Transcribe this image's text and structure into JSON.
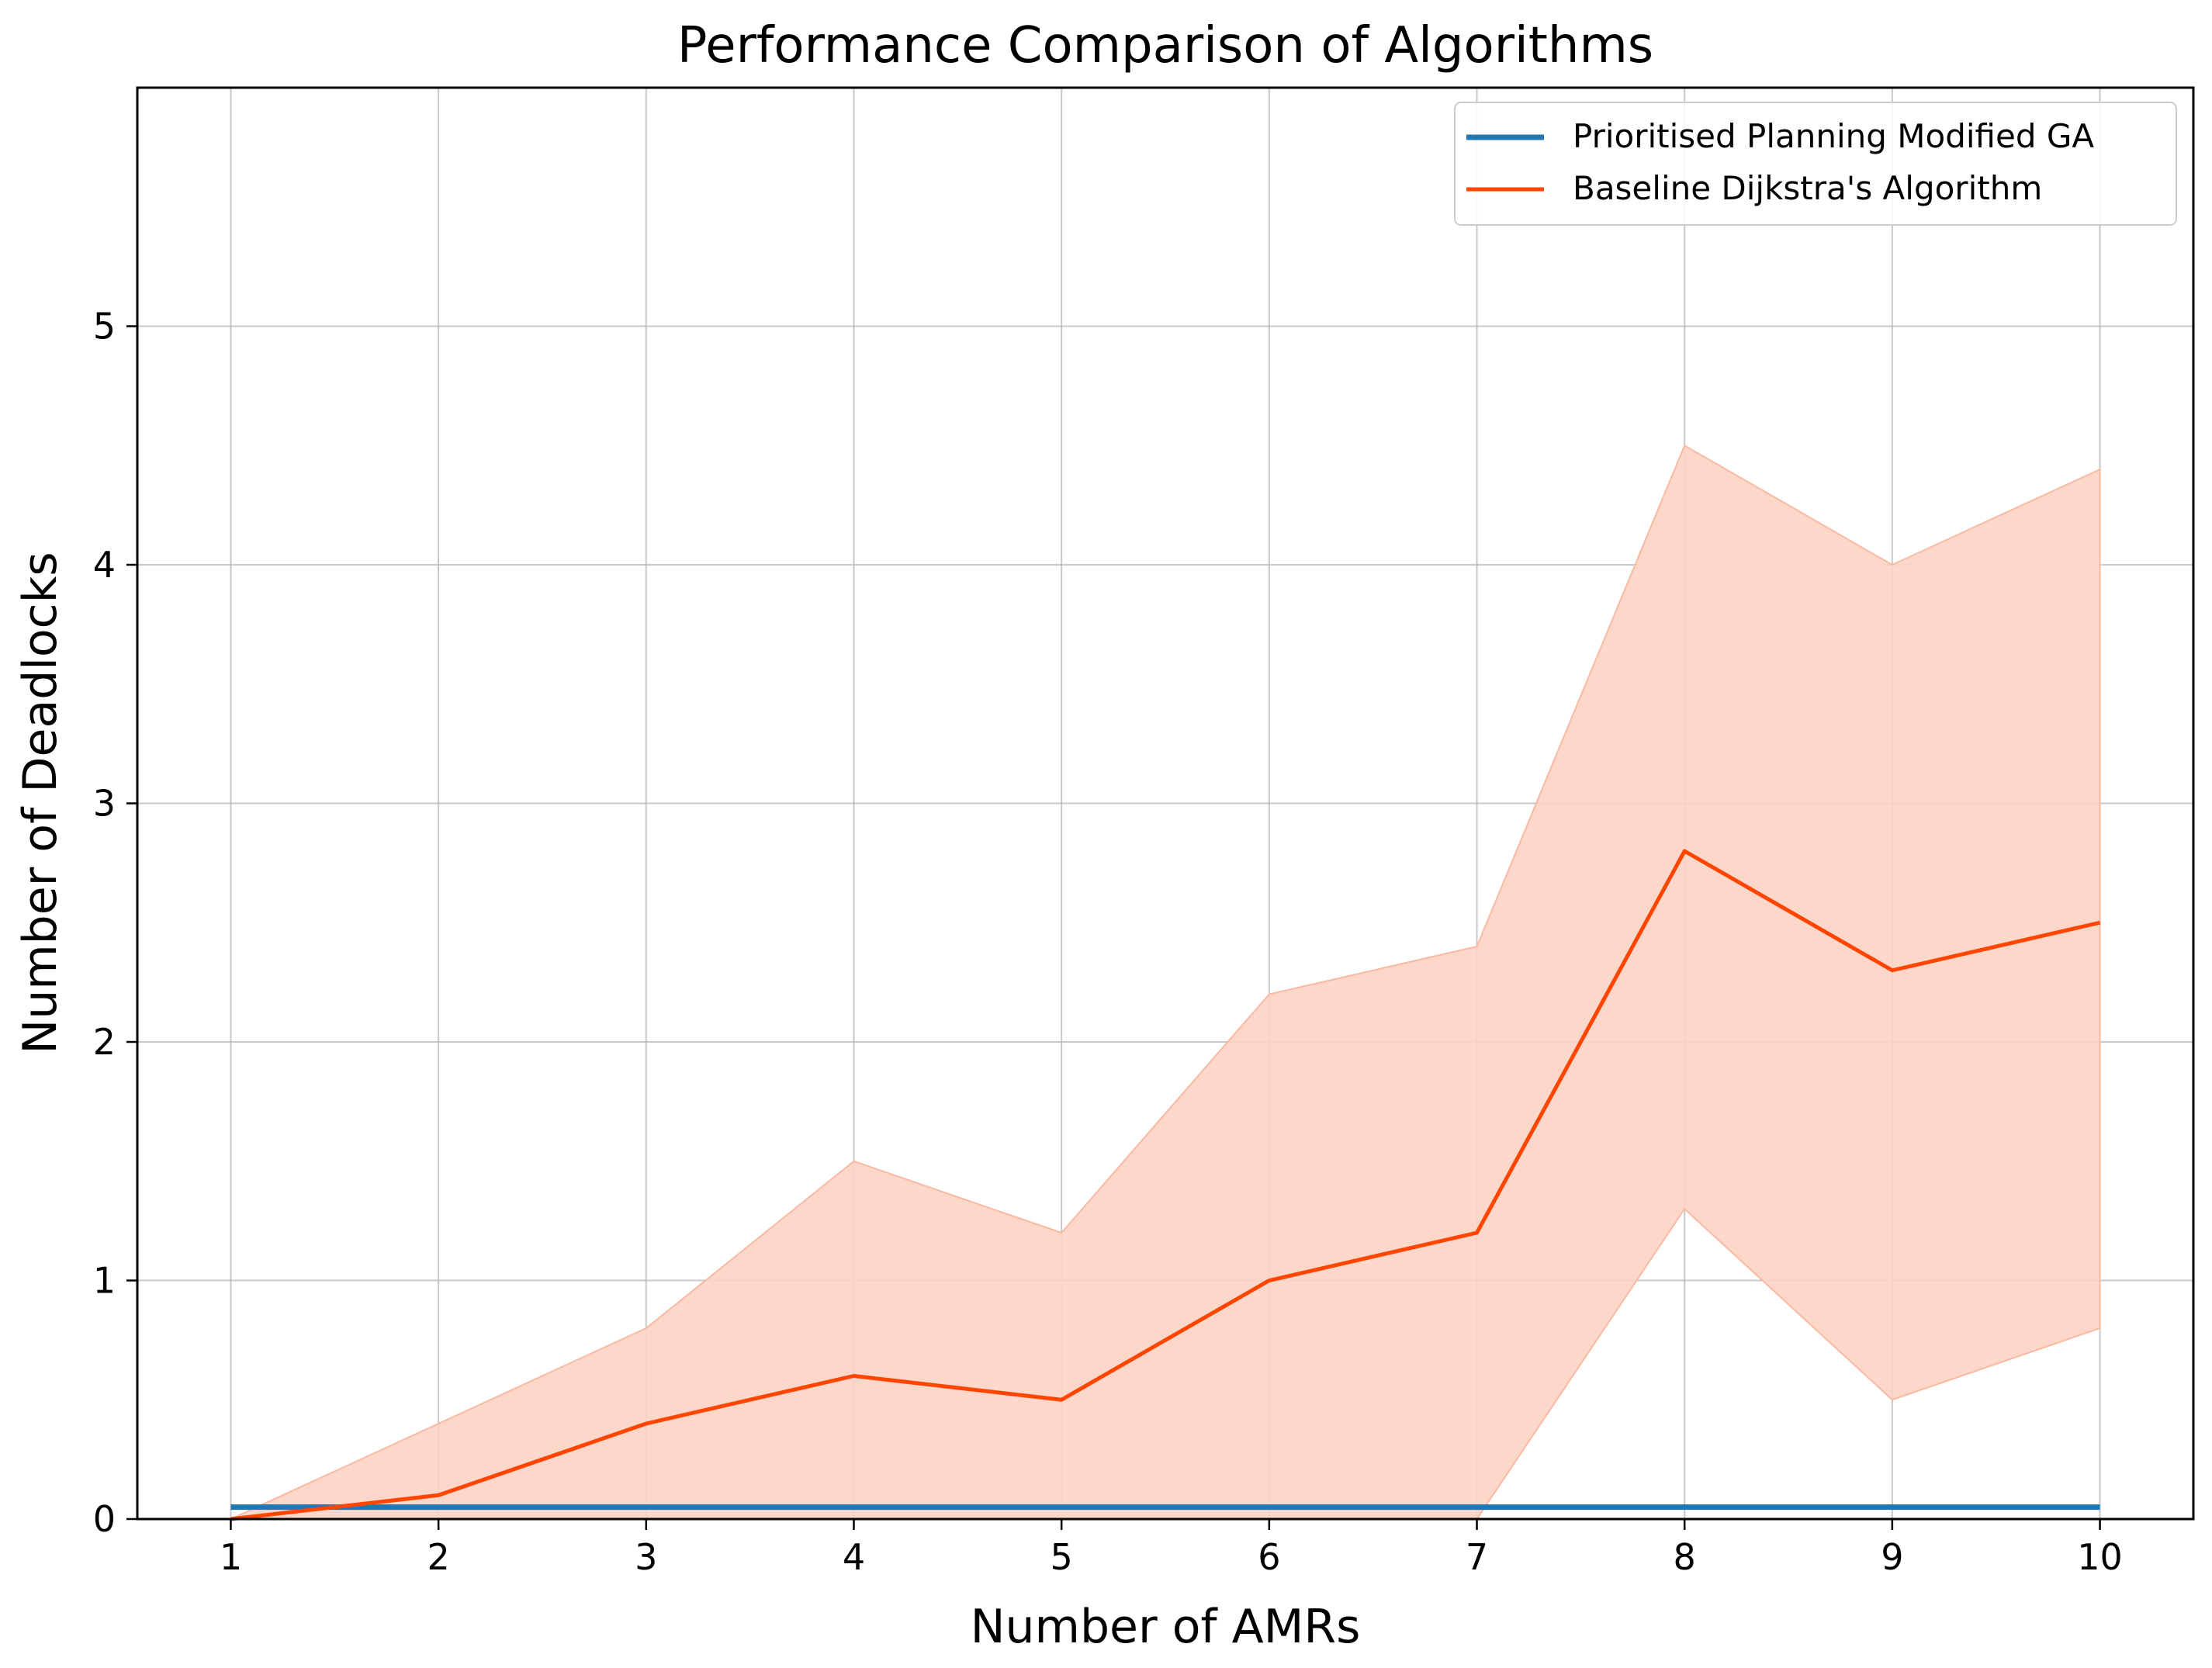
{
  "chart_data": {
    "type": "line",
    "title": "Performance Comparison of Algorithms",
    "xlabel": "Number of AMRs",
    "ylabel": "Number of Deadlocks",
    "x": [
      1,
      2,
      3,
      4,
      5,
      6,
      7,
      8,
      9,
      10
    ],
    "xlim": [
      0.55,
      10.45
    ],
    "ylim": [
      0,
      6.0
    ],
    "xticks": [
      "1",
      "2",
      "3",
      "4",
      "5",
      "6",
      "7",
      "8",
      "9",
      "10"
    ],
    "yticks": [
      "0",
      "1",
      "2",
      "3",
      "4",
      "5"
    ],
    "grid": true,
    "legend_position": "top-right",
    "series": [
      {
        "name": "Prioritised Planning Modified GA",
        "color": "#1f77b4",
        "values": [
          0.05,
          0.05,
          0.05,
          0.05,
          0.05,
          0.05,
          0.05,
          0.05,
          0.05,
          0.05
        ]
      },
      {
        "name": "Baseline Dijkstra's Algorithm",
        "color": "#ff4500",
        "band_color": "#fdd3c4",
        "values": [
          0.0,
          0.1,
          0.4,
          0.6,
          0.5,
          1.0,
          1.2,
          2.8,
          2.3,
          2.5
        ],
        "band_lower": [
          0.0,
          0.0,
          0.0,
          0.0,
          0.0,
          0.0,
          0.0,
          1.3,
          0.5,
          0.8
        ],
        "band_upper": [
          0.0,
          0.4,
          0.8,
          1.5,
          1.2,
          2.2,
          2.4,
          4.5,
          4.0,
          4.4
        ]
      }
    ]
  }
}
